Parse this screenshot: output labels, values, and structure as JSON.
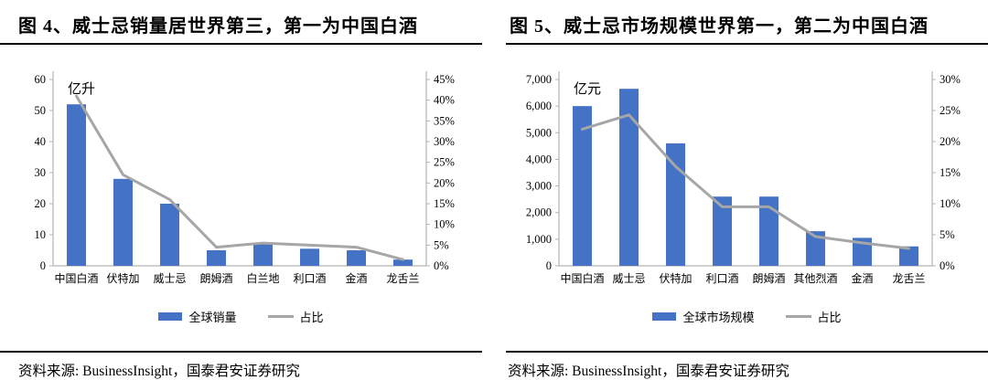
{
  "colors": {
    "bar": "#4472C4",
    "line": "#A6A6A6",
    "axis": "#B3B3B3",
    "rule": "#000000"
  },
  "sources": {
    "left": "资料来源: BusinessInsight，国泰君安证券研究",
    "right": "资料来源: BusinessInsight，国泰君安证券研究"
  },
  "chart_data": [
    {
      "type": "bar",
      "title": "图 4、威士忌销量居世界第三，第一为中国白酒",
      "unit_label": "亿升",
      "categories": [
        "中国白酒",
        "伏特加",
        "威士忌",
        "朗姆酒",
        "白兰地",
        "利口酒",
        "金酒",
        "龙舌兰"
      ],
      "series": [
        {
          "name": "全球销量",
          "type": "bar",
          "axis": "left",
          "values": [
            52,
            28,
            20,
            5,
            7,
            5.5,
            5,
            2
          ]
        },
        {
          "name": "占比",
          "type": "line",
          "axis": "right",
          "unit": "%",
          "values": [
            41,
            22,
            16,
            4.5,
            5.5,
            5,
            4.5,
            1.5
          ]
        }
      ],
      "left_axis": {
        "min": 0,
        "max": 60,
        "step": 10,
        "format": "plain"
      },
      "right_axis": {
        "min": 0,
        "max": 45,
        "step": 5,
        "format": "percent"
      },
      "grid": false,
      "legend_position": "bottom"
    },
    {
      "type": "bar",
      "title": "图 5、威士忌市场规模世界第一，第二为中国白酒",
      "unit_label": "亿元",
      "categories": [
        "中国白酒",
        "威士忌",
        "伏特加",
        "利口酒",
        "朗姆酒",
        "其他烈酒",
        "金酒",
        "龙舌兰"
      ],
      "series": [
        {
          "name": "全球市场规模",
          "type": "bar",
          "axis": "left",
          "values": [
            6000,
            6650,
            4600,
            2600,
            2600,
            1300,
            1050,
            730
          ]
        },
        {
          "name": "占比",
          "type": "line",
          "axis": "right",
          "unit": "%",
          "values": [
            22,
            24.3,
            16,
            9.5,
            9.5,
            4.7,
            3.7,
            2.8
          ]
        }
      ],
      "left_axis": {
        "min": 0,
        "max": 7000,
        "step": 1000,
        "format": "thousands"
      },
      "right_axis": {
        "min": 0,
        "max": 30,
        "step": 5,
        "format": "percent"
      },
      "grid": false,
      "legend_position": "bottom"
    }
  ]
}
